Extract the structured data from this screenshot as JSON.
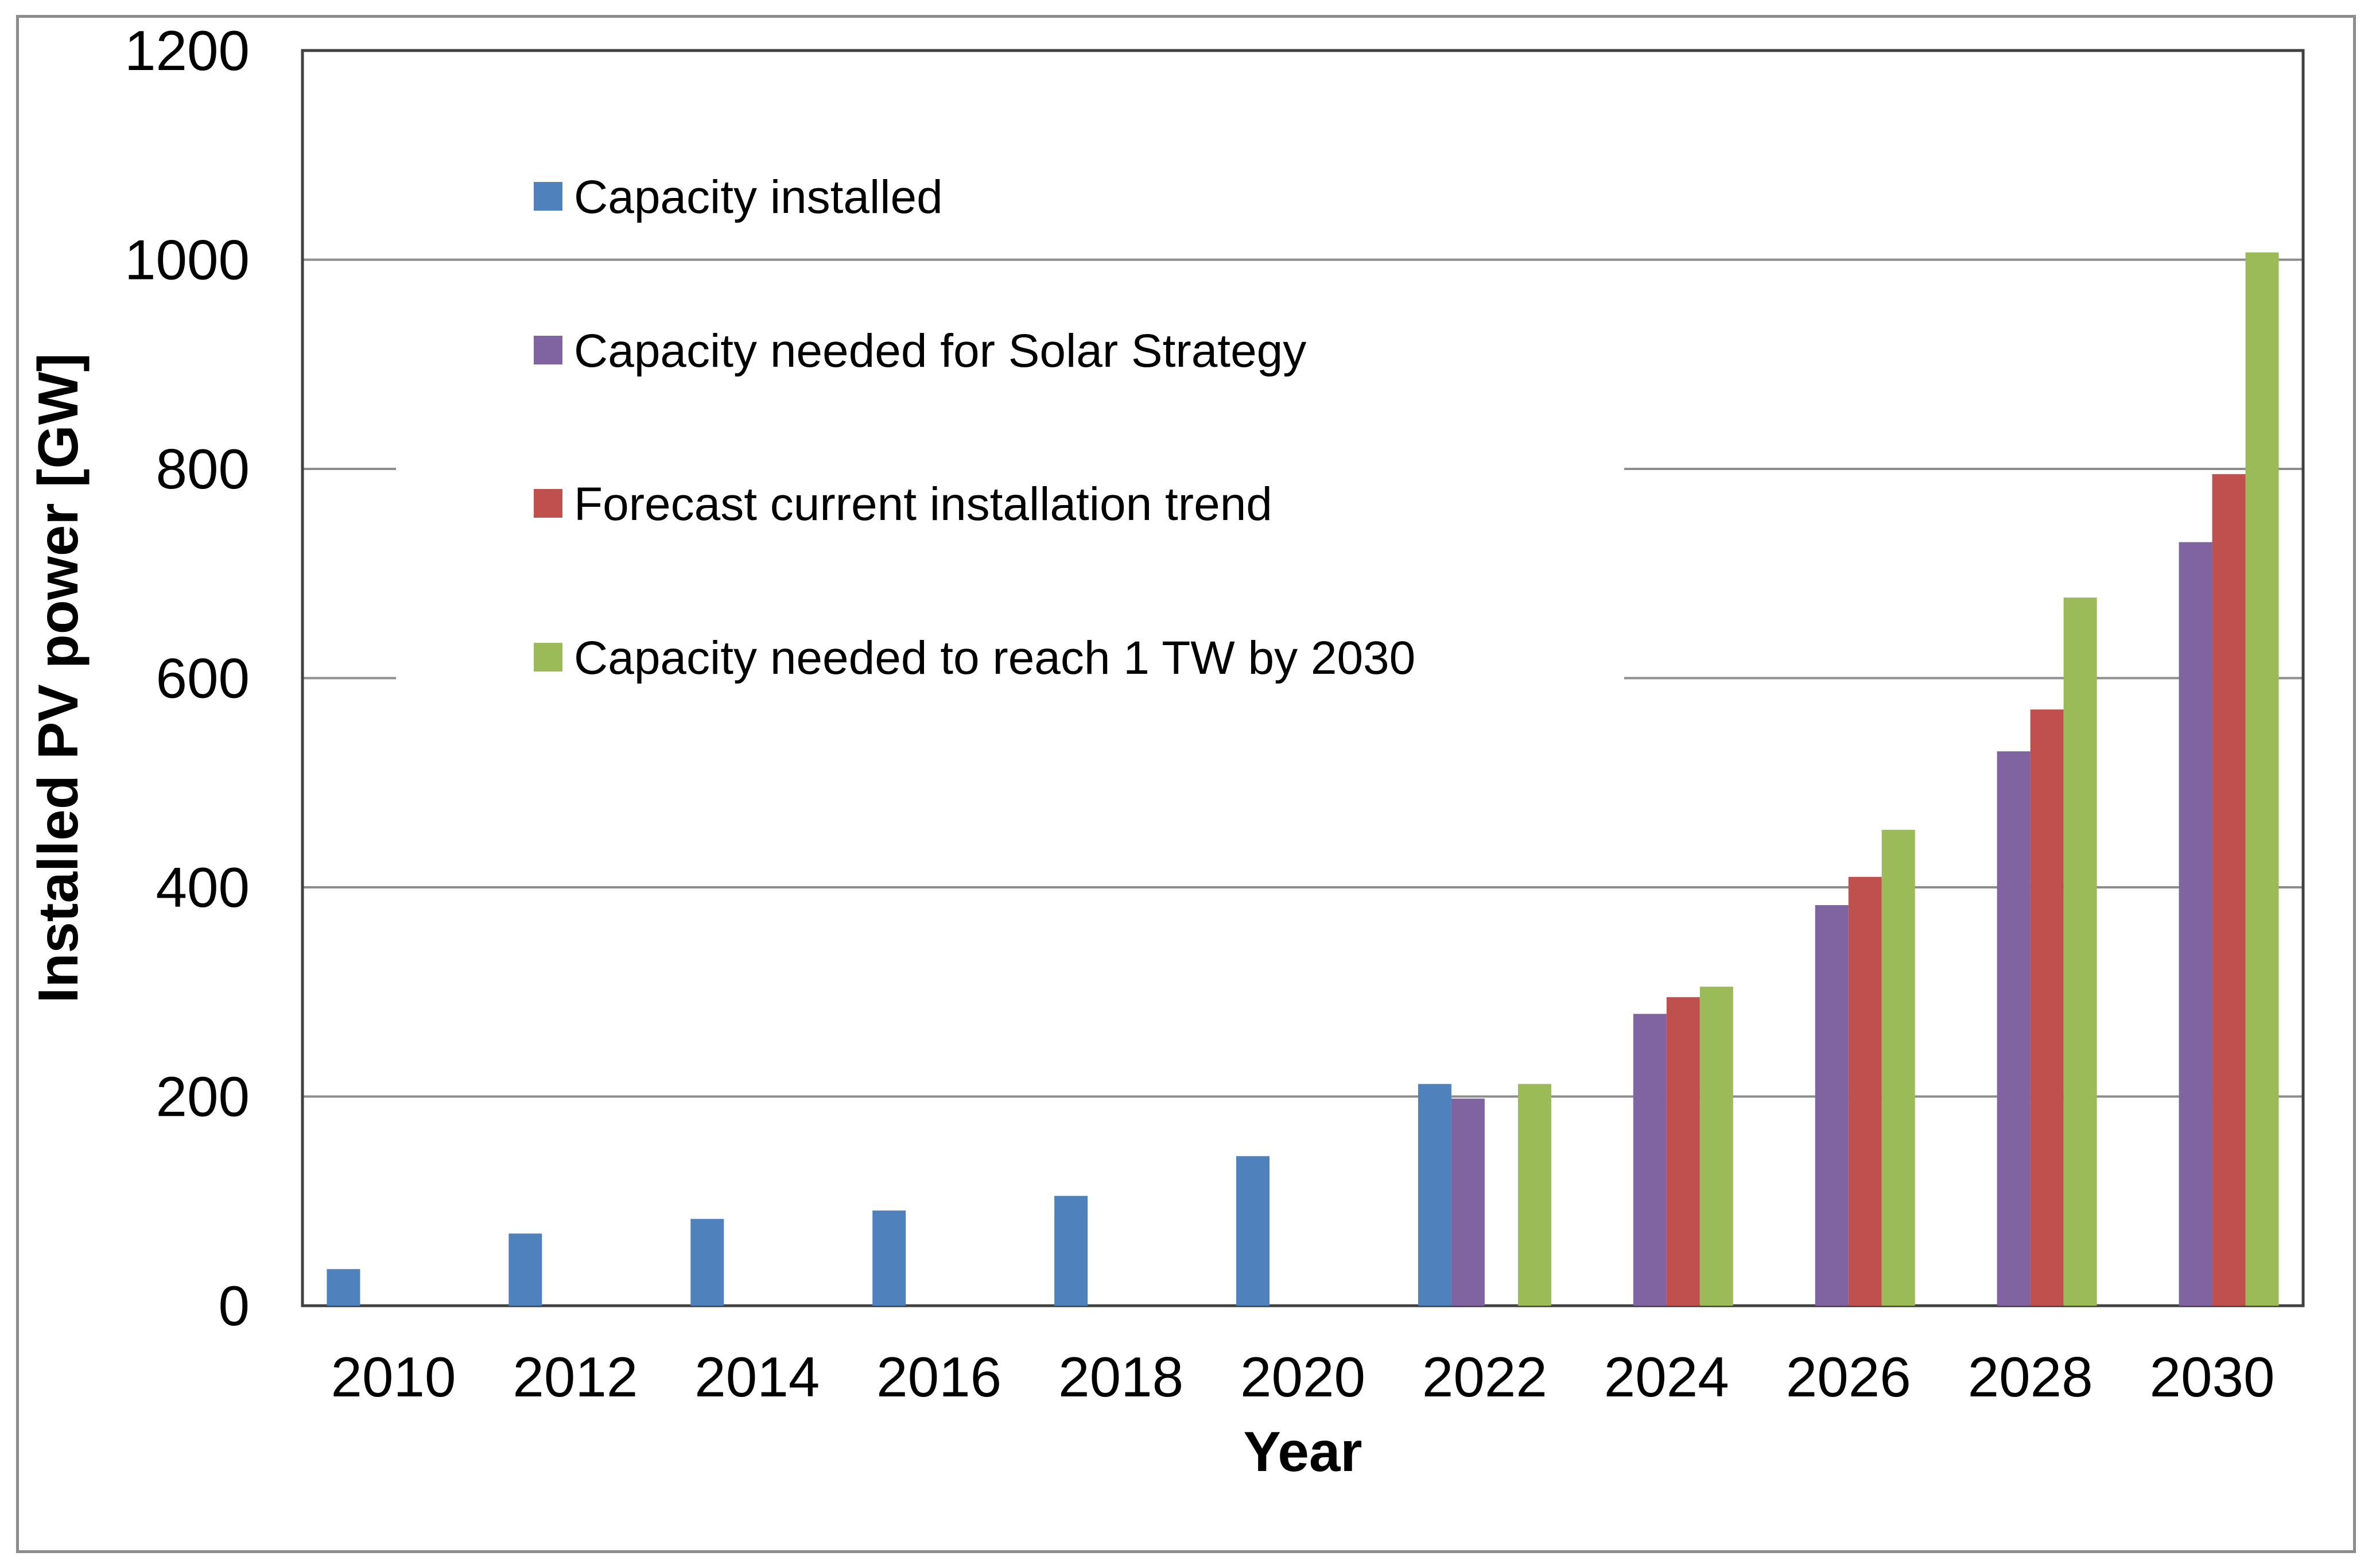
{
  "chart_data": {
    "type": "bar",
    "title": "",
    "xlabel": "Year",
    "ylabel": "Installed PV power [GW]",
    "ylim": [
      0,
      1200
    ],
    "yticks": [
      0,
      200,
      400,
      600,
      800,
      1000,
      1200
    ],
    "grid": true,
    "legend_position": "top-left",
    "categories": [
      "2010",
      "2012",
      "2014",
      "2016",
      "2018",
      "2020",
      "2022",
      "2024",
      "2026",
      "2028",
      "2030"
    ],
    "series": [
      {
        "name": "Capacity installed",
        "color": "#4f81bd",
        "values": [
          35,
          69,
          83,
          91,
          105,
          143,
          212,
          null,
          null,
          null,
          null
        ]
      },
      {
        "name": "Capacity needed for Solar Strategy",
        "color": "#8064a2",
        "values": [
          null,
          null,
          null,
          null,
          null,
          null,
          198,
          279,
          383,
          530,
          730
        ]
      },
      {
        "name": "Forecast current installation trend",
        "color": "#c0504d",
        "values": [
          null,
          null,
          null,
          null,
          null,
          null,
          null,
          295,
          410,
          570,
          795
        ]
      },
      {
        "name": "Capacity needed to reach 1 TW by 2030",
        "color": "#9bbb59",
        "values": [
          null,
          null,
          null,
          null,
          null,
          null,
          212,
          305,
          455,
          677,
          1007
        ]
      }
    ]
  }
}
